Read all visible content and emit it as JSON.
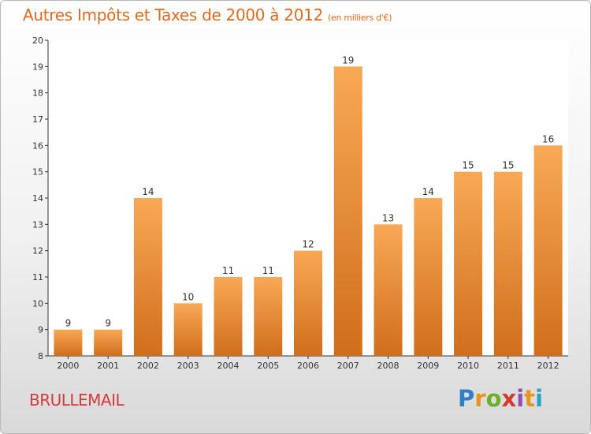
{
  "title": "Autres Impôts et Taxes de 2000 à 2012",
  "subtitle": "(en milliers d'€)",
  "commune": "BRULLEMAIL",
  "logo": {
    "text": "Proxiti",
    "letters": [
      "P",
      "r",
      "o",
      "x",
      "i",
      "t",
      "i"
    ],
    "colors": [
      "#2f7fc8",
      "#e8951f",
      "#6cae2e",
      "#d3392f",
      "#8e4fb0",
      "#e8951f",
      "#2aa0c8"
    ]
  },
  "colors": {
    "bar_light": "#f8a956",
    "bar_dark": "#d06e1c",
    "title": "#e36a1a",
    "commune": "#d43a3a"
  },
  "chart_data": {
    "type": "bar",
    "categories": [
      "2000",
      "2001",
      "2002",
      "2003",
      "2004",
      "2005",
      "2006",
      "2007",
      "2008",
      "2009",
      "2010",
      "2011",
      "2012"
    ],
    "values": [
      9,
      9,
      14,
      10,
      11,
      11,
      12,
      19,
      13,
      14,
      15,
      15,
      16
    ],
    "data_labels": [
      "9",
      "9",
      "14",
      "10",
      "11",
      "11",
      "12",
      "19",
      "13",
      "14",
      "15",
      "15",
      "16"
    ],
    "yticks": [
      "8",
      "9",
      "10",
      "11",
      "12",
      "13",
      "14",
      "15",
      "16",
      "17",
      "18",
      "19",
      "20"
    ],
    "ylim": [
      8,
      20
    ],
    "grid": false,
    "title": "Autres Impôts et Taxes de 2000 à 2012",
    "xlabel": "",
    "ylabel": ""
  }
}
